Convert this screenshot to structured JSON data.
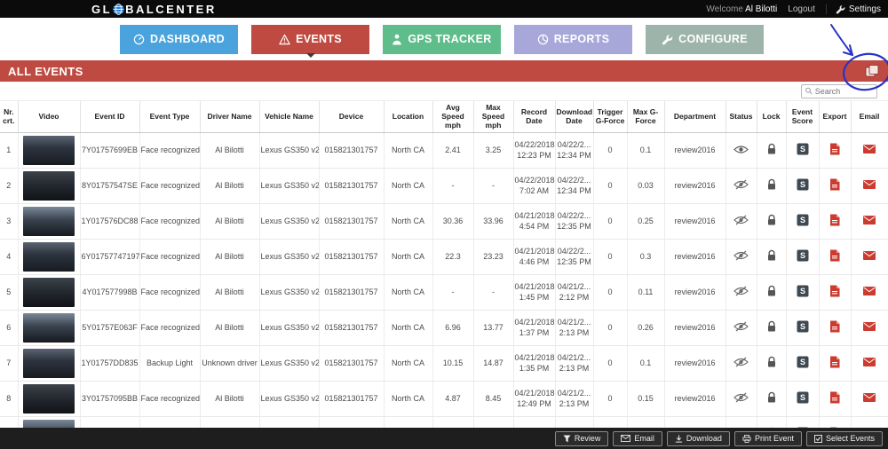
{
  "topbar": {
    "brand_gl": "GL",
    "brand_rest": "BALCENTER",
    "welcome": "Welcome",
    "user": "Al Bilotti",
    "logout": "Logout",
    "settings": "Settings"
  },
  "nav": {
    "tabs": [
      {
        "id": "dashboard",
        "label": "DASHBOARD",
        "color": "#4aa3dd",
        "active": false
      },
      {
        "id": "events",
        "label": "EVENTS",
        "color": "#bf4a41",
        "active": true
      },
      {
        "id": "gps-tracker",
        "label": "GPS TRACKER",
        "color": "#5fbd8b",
        "active": false
      },
      {
        "id": "reports",
        "label": "REPORTS",
        "color": "#a7a7da",
        "active": false
      },
      {
        "id": "configure",
        "label": "CONFIGURE",
        "color": "#9db4ab",
        "active": false
      }
    ]
  },
  "section": {
    "title": "ALL EVENTS",
    "bar_color": "#bf4a41"
  },
  "search": {
    "placeholder": "Search"
  },
  "annotation": {
    "color": "#2733c7"
  },
  "table": {
    "headers": [
      "Nr. crt.",
      "Video",
      "Event ID",
      "Event Type",
      "Driver Name",
      "Vehicle Name",
      "Device",
      "Location",
      "Avg Speed mph",
      "Max Speed mph",
      "Record Date",
      "Download Date",
      "Trigger G-Force",
      "Max G-Force",
      "Department",
      "Status",
      "Lock",
      "Event Score",
      "Export",
      "Email"
    ],
    "rows": [
      {
        "nr": "1",
        "event_id": "7Y01757699EB",
        "event_type": "Face recognized",
        "driver": "Al Bilotti",
        "vehicle": "Lexus GS350 v2",
        "device": "015821301757",
        "location": "North CA",
        "avg_speed": "2.41",
        "max_speed": "3.25",
        "record_date": "04/22/2018",
        "record_time": "12:23 PM",
        "download_date": "04/22/2...",
        "download_time": "12:34 PM",
        "trigger_gforce": "0",
        "max_gforce": "0.1",
        "department": "review2016",
        "status": "visible"
      },
      {
        "nr": "2",
        "event_id": "8Y01757547SE",
        "event_type": "Face recognized",
        "driver": "Al Bilotti",
        "vehicle": "Lexus GS350 v2",
        "device": "015821301757",
        "location": "North CA",
        "avg_speed": "-",
        "max_speed": "-",
        "record_date": "04/22/2018",
        "record_time": "7:02 AM",
        "download_date": "04/22/2...",
        "download_time": "12:34 PM",
        "trigger_gforce": "0",
        "max_gforce": "0.03",
        "department": "review2016",
        "status": "hidden"
      },
      {
        "nr": "3",
        "event_id": "1Y017576DC88",
        "event_type": "Face recognized",
        "driver": "Al Bilotti",
        "vehicle": "Lexus GS350 v2",
        "device": "015821301757",
        "location": "North CA",
        "avg_speed": "30.36",
        "max_speed": "33.96",
        "record_date": "04/21/2018",
        "record_time": "4:54 PM",
        "download_date": "04/22/2...",
        "download_time": "12:35 PM",
        "trigger_gforce": "0",
        "max_gforce": "0.25",
        "department": "review2016",
        "status": "hidden"
      },
      {
        "nr": "4",
        "event_id": "6Y01757747197",
        "event_type": "Face recognized",
        "driver": "Al Bilotti",
        "vehicle": "Lexus GS350 v2",
        "device": "015821301757",
        "location": "North CA",
        "avg_speed": "22.3",
        "max_speed": "23.23",
        "record_date": "04/21/2018",
        "record_time": "4:46 PM",
        "download_date": "04/22/2...",
        "download_time": "12:35 PM",
        "trigger_gforce": "0",
        "max_gforce": "0.3",
        "department": "review2016",
        "status": "hidden"
      },
      {
        "nr": "5",
        "event_id": "4Y017577998B",
        "event_type": "Face recognized",
        "driver": "Al Bilotti",
        "vehicle": "Lexus GS350 v2",
        "device": "015821301757",
        "location": "North CA",
        "avg_speed": "-",
        "max_speed": "-",
        "record_date": "04/21/2018",
        "record_time": "1:45 PM",
        "download_date": "04/21/2...",
        "download_time": "2:12 PM",
        "trigger_gforce": "0",
        "max_gforce": "0.11",
        "department": "review2016",
        "status": "hidden"
      },
      {
        "nr": "6",
        "event_id": "5Y01757E063F",
        "event_type": "Face recognized",
        "driver": "Al Bilotti",
        "vehicle": "Lexus GS350 v2",
        "device": "015821301757",
        "location": "North CA",
        "avg_speed": "6.96",
        "max_speed": "13.77",
        "record_date": "04/21/2018",
        "record_time": "1:37 PM",
        "download_date": "04/21/2...",
        "download_time": "2:13 PM",
        "trigger_gforce": "0",
        "max_gforce": "0.26",
        "department": "review2016",
        "status": "hidden"
      },
      {
        "nr": "7",
        "event_id": "1Y01757DD835",
        "event_type": "Backup Light",
        "driver": "Unknown driver",
        "vehicle": "Lexus GS350 v2",
        "device": "015821301757",
        "location": "North CA",
        "avg_speed": "10.15",
        "max_speed": "14.87",
        "record_date": "04/21/2018",
        "record_time": "1:35 PM",
        "download_date": "04/21/2...",
        "download_time": "2:13 PM",
        "trigger_gforce": "0",
        "max_gforce": "0.1",
        "department": "review2016",
        "status": "hidden"
      },
      {
        "nr": "8",
        "event_id": "3Y01757095BB",
        "event_type": "Face recognized",
        "driver": "Al Bilotti",
        "vehicle": "Lexus GS350 v2",
        "device": "015821301757",
        "location": "North CA",
        "avg_speed": "4.87",
        "max_speed": "8.45",
        "record_date": "04/21/2018",
        "record_time": "12:49 PM",
        "download_date": "04/21/2...",
        "download_time": "2:13 PM",
        "trigger_gforce": "0",
        "max_gforce": "0.15",
        "department": "review2016",
        "status": "hidden"
      },
      {
        "nr": "",
        "event_id": "",
        "event_type": "",
        "driver": "",
        "vehicle": "",
        "device": "",
        "location": "",
        "avg_speed": "",
        "max_speed": "",
        "record_date": "",
        "record_time": "",
        "download_date": "",
        "download_time": "",
        "trigger_gforce": "",
        "max_gforce": "",
        "department": "",
        "status": "hidden"
      }
    ]
  },
  "footer": {
    "buttons": [
      {
        "id": "review",
        "label": "Review"
      },
      {
        "id": "email",
        "label": "Email"
      },
      {
        "id": "download",
        "label": "Download"
      },
      {
        "id": "print",
        "label": "Print Event"
      },
      {
        "id": "select",
        "label": "Select Events"
      }
    ]
  }
}
